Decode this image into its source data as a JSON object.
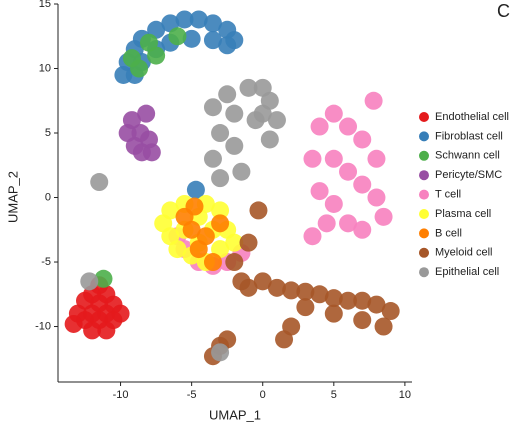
{
  "chart_data": {
    "type": "scatter",
    "xlabel": "UMAP_1",
    "ylabel": "UMAP_2",
    "annotations": [
      "C"
    ],
    "xlim": [
      -14.4,
      10.5
    ],
    "ylim": [
      -14.3,
      15
    ],
    "xticks": [
      -10,
      -5,
      0,
      5,
      10
    ],
    "yticks": [
      -10,
      -5,
      0,
      5,
      10,
      15
    ],
    "legend": "right",
    "series": [
      {
        "name": "Endothelial cell",
        "color": "#e41a1c",
        "x": [
          -13,
          -12.5,
          -12.5,
          -12,
          -12,
          -12,
          -11.5,
          -11.5,
          -11.5,
          -11,
          -11,
          -11,
          -10.5,
          -10.5,
          -10,
          -13.3
        ],
        "y": [
          -9,
          -8,
          -9.5,
          -7.5,
          -9,
          -10.3,
          -6.8,
          -8.2,
          -9.5,
          -7.5,
          -9,
          -10.3,
          -8.3,
          -9.5,
          -9,
          -9.8
        ]
      },
      {
        "name": "Fibroblast cell",
        "color": "#377eb8",
        "x": [
          -9.8,
          -9.5,
          -9,
          -8.5,
          -7.5,
          -6.5,
          -5.5,
          -4.5,
          -3.5,
          -2.5,
          -2,
          -2.5,
          -3.5,
          -5,
          -6.5,
          -7.5,
          -8.5,
          -9,
          -4.7
        ],
        "y": [
          9.5,
          10.5,
          11.5,
          12.3,
          13,
          13.5,
          13.8,
          13.8,
          13.5,
          13,
          12.2,
          11.8,
          12.2,
          12.3,
          12,
          11.5,
          10.5,
          9.5,
          0.6
        ]
      },
      {
        "name": "Schwann cell",
        "color": "#4daf4a",
        "x": [
          -8.7,
          -7.5,
          -6,
          -8,
          -9.2,
          -11.2
        ],
        "y": [
          10,
          11,
          12.5,
          12,
          10.8,
          -6.3
        ]
      },
      {
        "name": "Pericyte/SMC",
        "color": "#984ea3",
        "x": [
          -9.5,
          -9.2,
          -9,
          -8.6,
          -8.5,
          -8,
          -8.2,
          -7.8
        ],
        "y": [
          5,
          6,
          4,
          5,
          3.5,
          4.5,
          6.5,
          3.5
        ]
      },
      {
        "name": "T cell",
        "color": "#f781bf",
        "x": [
          3.5,
          4,
          4,
          4.5,
          5,
          5,
          5,
          6,
          6,
          6,
          7,
          7,
          7,
          8,
          8,
          8.5,
          3.5,
          7.8,
          -5.5,
          -4.5,
          -3.5,
          -2.5,
          -1.5,
          -6
        ],
        "y": [
          3,
          5.5,
          0.5,
          -2,
          6.5,
          3,
          -0.5,
          5.5,
          2,
          -2,
          4.5,
          1,
          -2.5,
          3,
          0,
          -1.5,
          -3,
          7.5,
          -4,
          -5,
          -5.3,
          -5,
          -4.3,
          -3
        ]
      },
      {
        "name": "Plasma cell",
        "color": "#ffff33",
        "x": [
          -7,
          -6.5,
          -6.5,
          -6,
          -5.5,
          -5.5,
          -5,
          -4.5,
          -4.5,
          -4,
          -4,
          -3.5,
          -3,
          -3,
          -2.5,
          -2
        ],
        "y": [
          -2,
          -1,
          -3,
          -4,
          -0.5,
          -2.5,
          -4.5,
          -1.5,
          -3.5,
          -0.5,
          -5,
          -2.5,
          -4,
          -1,
          -2.5,
          -3.5
        ]
      },
      {
        "name": "B cell",
        "color": "#ff7f00",
        "x": [
          -5,
          -4.5,
          -4,
          -3.5,
          -3,
          -5.5,
          -4.8
        ],
        "y": [
          -2.5,
          -4,
          -3,
          -5,
          -2,
          -1.5,
          -0.7
        ]
      },
      {
        "name": "Myeloid cell",
        "color": "#a65628",
        "x": [
          -1.5,
          -1,
          0,
          1,
          2,
          3,
          4,
          5,
          6,
          7,
          8,
          9,
          8.5,
          7,
          5,
          3,
          2,
          1.5,
          -1,
          -0.3,
          -3,
          -3.5,
          -2.5,
          -2
        ],
        "y": [
          -6.5,
          -7,
          -6.5,
          -7,
          -7.2,
          -7.3,
          -7.5,
          -7.8,
          -8,
          -8,
          -8.3,
          -8.8,
          -10,
          -9.5,
          -9,
          -8.5,
          -10,
          -11,
          -3.5,
          -1,
          -11.5,
          -12.3,
          -11,
          -5
        ]
      },
      {
        "name": "Epithelial cell",
        "color": "#999999",
        "x": [
          -3.5,
          -3,
          -3.5,
          -3,
          -2.5,
          -2,
          -2,
          -1.5,
          -1,
          -0.5,
          0,
          0,
          0.5,
          0.5,
          1,
          -12.2,
          -3,
          -11.5
        ],
        "y": [
          7,
          5,
          3,
          1.5,
          8,
          6.5,
          4,
          2,
          8.5,
          6,
          8.5,
          6.5,
          4.5,
          7.5,
          6,
          -6.5,
          -12,
          1.2
        ]
      }
    ]
  }
}
